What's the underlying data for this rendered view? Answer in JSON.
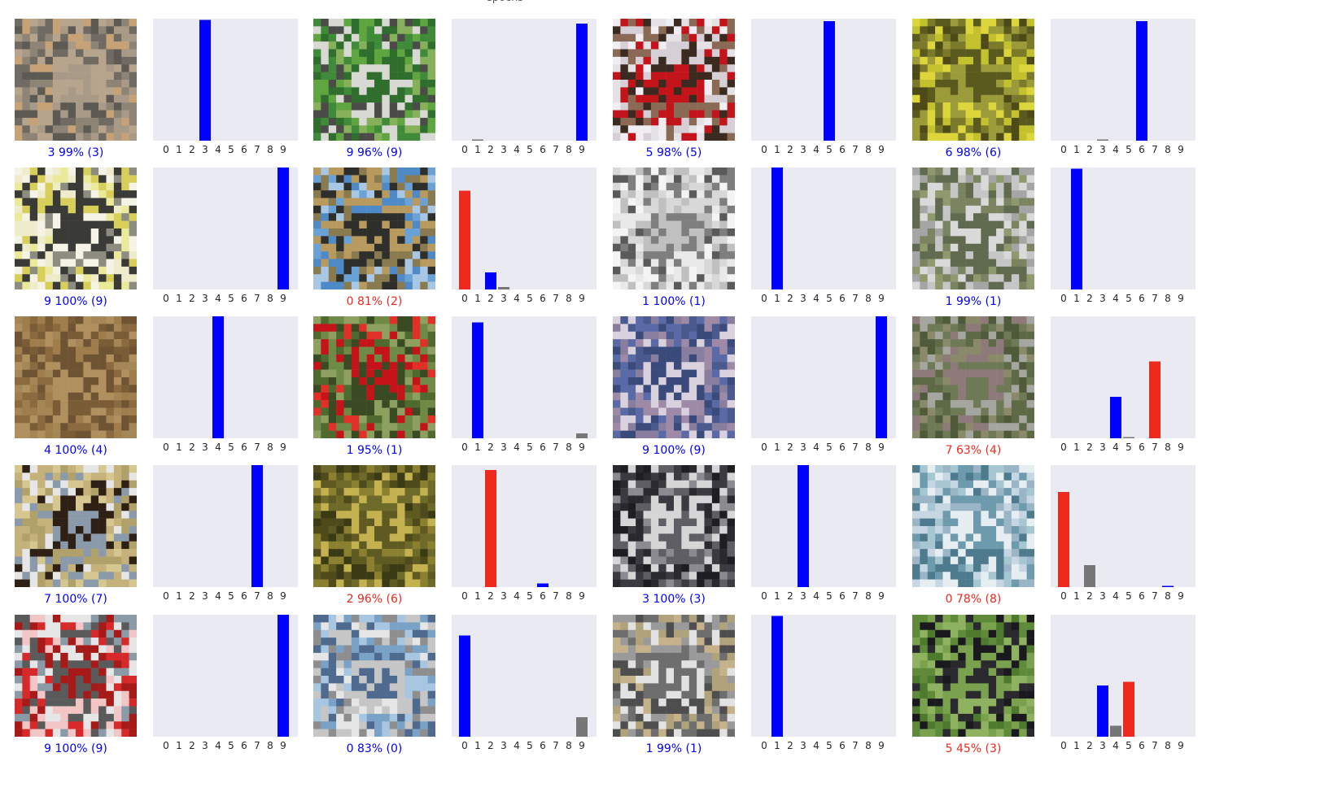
{
  "title": "epochs",
  "colors": {
    "correct": "#0000ff",
    "wrong": "#ee2a1e",
    "other": "#777777",
    "panel_bg": "#eaeaf2"
  },
  "tick_labels": [
    "0",
    "1",
    "2",
    "3",
    "4",
    "5",
    "6",
    "7",
    "8",
    "9"
  ],
  "chart_data": [
    {
      "type": "bar",
      "image": "cat",
      "caption": "3 99% (3)",
      "predicted": 3,
      "true_label": 3,
      "values": [
        0,
        0,
        0,
        0.99,
        0,
        0,
        0,
        0,
        0,
        0
      ],
      "ylim": [
        0,
        1
      ]
    },
    {
      "type": "bar",
      "image": "green-truck",
      "caption": "9 96% (9)",
      "predicted": 9,
      "true_label": 9,
      "values": [
        0,
        0.01,
        0,
        0,
        0,
        0,
        0,
        0,
        0,
        0.96
      ],
      "ylim": [
        0,
        1
      ]
    },
    {
      "type": "bar",
      "image": "dog-with-flower",
      "caption": "5 98% (5)",
      "predicted": 5,
      "true_label": 5,
      "values": [
        0,
        0,
        0,
        0,
        0,
        0.98,
        0,
        0,
        0,
        0
      ],
      "ylim": [
        0,
        1
      ]
    },
    {
      "type": "bar",
      "image": "frog",
      "caption": "6 98% (6)",
      "predicted": 6,
      "true_label": 6,
      "values": [
        0,
        0,
        0,
        0.01,
        0,
        0,
        0.98,
        0,
        0,
        0
      ],
      "ylim": [
        0,
        1
      ]
    },
    {
      "type": "bar",
      "image": "yellow-truck",
      "caption": "9 100% (9)",
      "predicted": 9,
      "true_label": 9,
      "values": [
        0,
        0,
        0,
        0,
        0,
        0,
        0,
        0,
        0,
        1.0
      ],
      "ylim": [
        0,
        1
      ]
    },
    {
      "type": "bar",
      "image": "ostrich",
      "caption": "0 81% (2)",
      "predicted": 0,
      "true_label": 2,
      "values": [
        0.81,
        0,
        0.14,
        0.02,
        0,
        0,
        0,
        0,
        0,
        0
      ],
      "ylim": [
        0,
        1
      ]
    },
    {
      "type": "bar",
      "image": "white-car",
      "caption": "1 100% (1)",
      "predicted": 1,
      "true_label": 1,
      "values": [
        0,
        1.0,
        0,
        0,
        0,
        0,
        0,
        0,
        0,
        0
      ],
      "ylim": [
        0,
        1
      ]
    },
    {
      "type": "bar",
      "image": "silver-car",
      "caption": "1 99% (1)",
      "predicted": 1,
      "true_label": 1,
      "values": [
        0,
        0.99,
        0,
        0,
        0,
        0,
        0,
        0,
        0,
        0
      ],
      "ylim": [
        0,
        1
      ]
    },
    {
      "type": "bar",
      "image": "deer",
      "caption": "4 100% (4)",
      "predicted": 4,
      "true_label": 4,
      "values": [
        0,
        0,
        0,
        0,
        1.0,
        0,
        0,
        0,
        0,
        0
      ],
      "ylim": [
        0,
        1
      ]
    },
    {
      "type": "bar",
      "image": "red-car",
      "caption": "1 95% (1)",
      "predicted": 1,
      "true_label": 1,
      "values": [
        0,
        0.95,
        0,
        0,
        0,
        0,
        0,
        0,
        0,
        0.04
      ],
      "ylim": [
        0,
        1
      ]
    },
    {
      "type": "bar",
      "image": "blue-truck",
      "caption": "9 100% (9)",
      "predicted": 9,
      "true_label": 9,
      "values": [
        0,
        0,
        0,
        0,
        0,
        0,
        0,
        0,
        0,
        1.0
      ],
      "ylim": [
        0,
        1
      ]
    },
    {
      "type": "bar",
      "image": "horse-animal",
      "caption": "7 63% (4)",
      "predicted": 7,
      "true_label": 4,
      "values": [
        0,
        0,
        0,
        0,
        0.34,
        0.01,
        0,
        0.63,
        0,
        0
      ],
      "ylim": [
        0,
        1
      ]
    },
    {
      "type": "bar",
      "image": "horse",
      "caption": "7 100% (7)",
      "predicted": 7,
      "true_label": 7,
      "values": [
        0,
        0,
        0,
        0,
        0,
        0,
        0,
        1.0,
        0,
        0
      ],
      "ylim": [
        0,
        1
      ]
    },
    {
      "type": "bar",
      "image": "frog-on-ground",
      "caption": "2 96% (6)",
      "predicted": 2,
      "true_label": 6,
      "values": [
        0,
        0,
        0.96,
        0,
        0,
        0,
        0.03,
        0,
        0,
        0
      ],
      "ylim": [
        0,
        1
      ]
    },
    {
      "type": "bar",
      "image": "cat-dark",
      "caption": "3 100% (3)",
      "predicted": 3,
      "true_label": 3,
      "values": [
        0,
        0,
        0,
        1.0,
        0,
        0,
        0,
        0,
        0,
        0
      ],
      "ylim": [
        0,
        1
      ]
    },
    {
      "type": "bar",
      "image": "ship",
      "caption": "0 78% (8)",
      "predicted": 0,
      "true_label": 8,
      "values": [
        0.78,
        0,
        0.18,
        0,
        0,
        0,
        0,
        0,
        0.01,
        0
      ],
      "ylim": [
        0,
        1
      ]
    },
    {
      "type": "bar",
      "image": "red-truck",
      "caption": "9 100% (9)",
      "predicted": 9,
      "true_label": 9,
      "values": [
        0,
        0,
        0,
        0,
        0,
        0,
        0,
        0,
        0,
        1.0
      ],
      "ylim": [
        0,
        1
      ]
    },
    {
      "type": "bar",
      "image": "airplane",
      "caption": "0 83% (0)",
      "predicted": 0,
      "true_label": 0,
      "values": [
        0.83,
        0,
        0,
        0,
        0,
        0,
        0,
        0,
        0,
        0.16
      ],
      "ylim": [
        0,
        1
      ]
    },
    {
      "type": "bar",
      "image": "old-car",
      "caption": "1 99% (1)",
      "predicted": 1,
      "true_label": 1,
      "values": [
        0,
        0.99,
        0,
        0,
        0,
        0,
        0,
        0,
        0,
        0
      ],
      "ylim": [
        0,
        1
      ]
    },
    {
      "type": "bar",
      "image": "black-cat",
      "caption": "5 45% (3)",
      "predicted": 5,
      "true_label": 3,
      "values": [
        0,
        0,
        0,
        0.42,
        0.09,
        0.45,
        0,
        0,
        0,
        0
      ],
      "ylim": [
        0,
        1
      ]
    }
  ]
}
